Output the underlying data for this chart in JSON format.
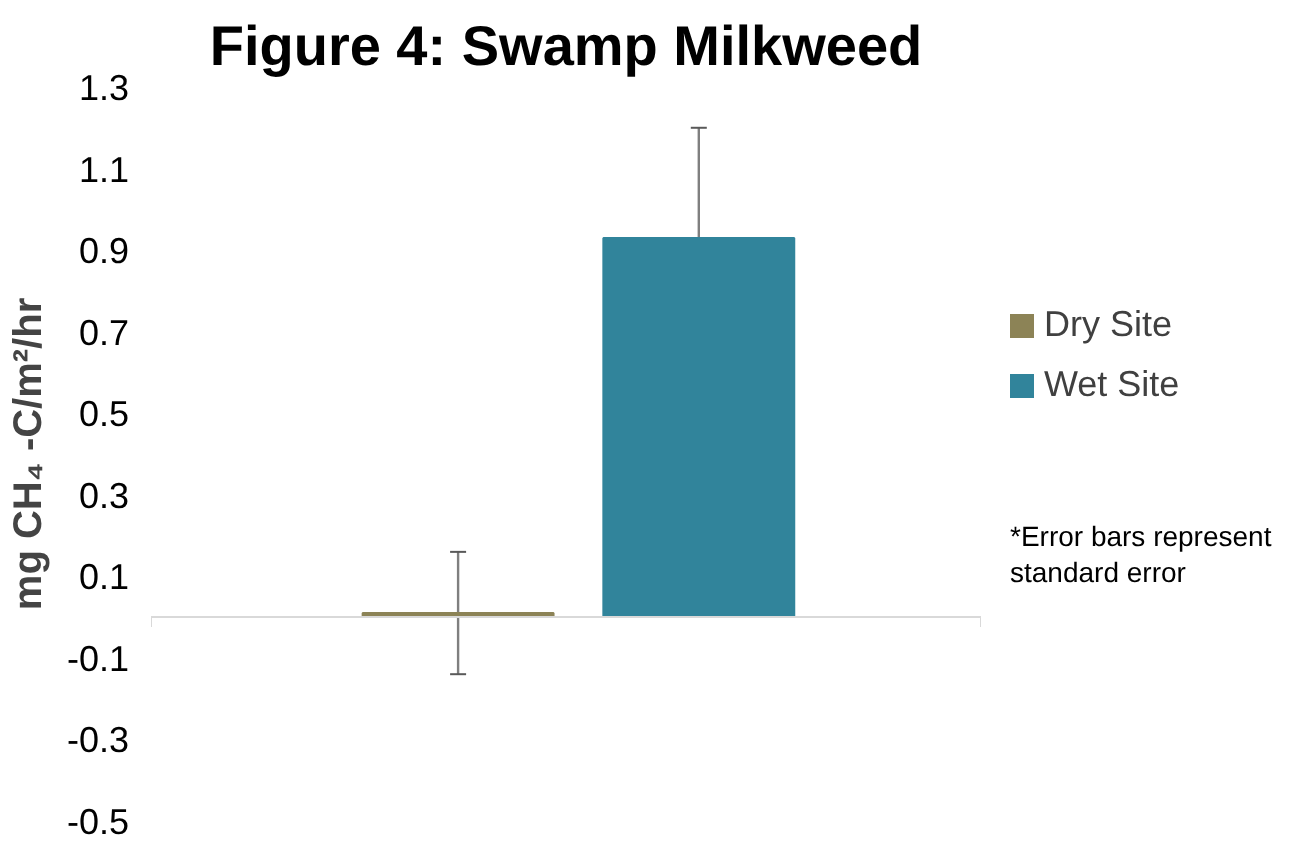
{
  "chart_data": {
    "type": "bar",
    "title": "Figure 4: Swamp Milkweed",
    "ylabel": "mg CH₄ -C/m²/hr",
    "categories": [
      null
    ],
    "series": [
      {
        "name": "Dry Site",
        "color": "#8c8356",
        "values": [
          0.01
        ],
        "errors": [
          0.15
        ]
      },
      {
        "name": "Wet Site",
        "color": "#31849b",
        "values": [
          0.93
        ],
        "errors": [
          0.27
        ]
      }
    ],
    "ylim": [
      -0.5,
      1.3
    ],
    "yticks": [
      -0.5,
      -0.3,
      -0.1,
      0.1,
      0.3,
      0.5,
      0.7,
      0.9,
      1.1,
      1.3
    ],
    "grid": false,
    "legend": "right",
    "annotations": [
      "*Error bars represent standard error"
    ]
  }
}
